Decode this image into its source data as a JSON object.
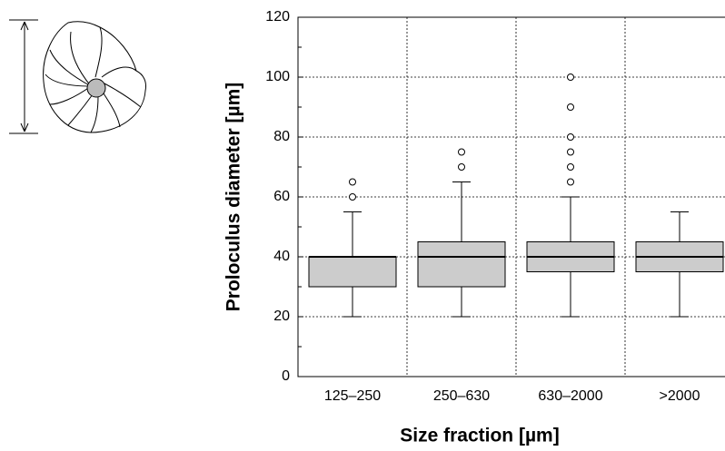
{
  "chart_data": {
    "type": "box",
    "xlabel": "Size fraction [µm]",
    "ylabel": "Proloculus diameter [µm]",
    "categories": [
      "125–250",
      "250–630",
      "630–2000",
      ">2000"
    ],
    "boxes": [
      {
        "whislo": 20,
        "q1": 30,
        "med": 40,
        "q3": 40,
        "whishi": 55,
        "fliers": [
          60,
          65
        ]
      },
      {
        "whislo": 20,
        "q1": 30,
        "med": 40,
        "q3": 45,
        "whishi": 65,
        "fliers": [
          70,
          75
        ]
      },
      {
        "whislo": 20,
        "q1": 35,
        "med": 40,
        "q3": 45,
        "whishi": 60,
        "fliers": [
          65,
          70,
          75,
          80,
          90,
          100
        ]
      },
      {
        "whislo": 20,
        "q1": 35,
        "med": 40,
        "q3": 45,
        "whishi": 55,
        "fliers": []
      }
    ],
    "color": "#cccccc",
    "ylim": [
      0,
      120
    ],
    "yticks": [
      0,
      20,
      40,
      60,
      80,
      100,
      120
    ],
    "y_minor_ticks": [
      10,
      30,
      50,
      70,
      90,
      110
    ],
    "grid": true
  }
}
